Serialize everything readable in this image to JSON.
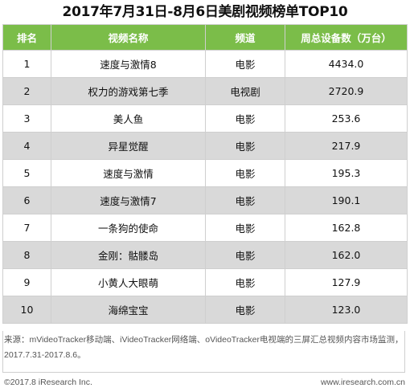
{
  "title": "2017年7月31日-8月6日美剧视频榜单TOP10",
  "headers": {
    "rank": "排名",
    "name": "视频名称",
    "channel": "频道",
    "value": "周总设备数（万台）"
  },
  "rows": [
    {
      "rank": "1",
      "name": "速度与激情8",
      "channel": "电影",
      "value": "4434.0"
    },
    {
      "rank": "2",
      "name": "权力的游戏第七季",
      "channel": "电视剧",
      "value": "2720.9"
    },
    {
      "rank": "3",
      "name": "美人鱼",
      "channel": "电影",
      "value": "253.6"
    },
    {
      "rank": "4",
      "name": "异星觉醒",
      "channel": "电影",
      "value": "217.9"
    },
    {
      "rank": "5",
      "name": "速度与激情",
      "channel": "电影",
      "value": "195.3"
    },
    {
      "rank": "6",
      "name": "速度与激情7",
      "channel": "电影",
      "value": "190.1"
    },
    {
      "rank": "7",
      "name": "一条狗的使命",
      "channel": "电影",
      "value": "162.8"
    },
    {
      "rank": "8",
      "name": "金刚：骷髅岛",
      "channel": "电影",
      "value": "162.0"
    },
    {
      "rank": "9",
      "name": "小黄人大眼萌",
      "channel": "电影",
      "value": "127.9"
    },
    {
      "rank": "10",
      "name": "海绵宝宝",
      "channel": "电影",
      "value": "123.0"
    }
  ],
  "source": "来源：mVideoTracker移动端、iVideoTracker网络端、oVideoTracker电视端的三屏汇总视频内容市场监测，2017.7.31-2017.8.6。",
  "copyright": "©2017.8 iResearch Inc.",
  "website": "www.iresearch.com.cn",
  "colors": {
    "header_bg": "#7bbd49",
    "alt_row_bg": "#d9d9d9"
  },
  "chart_data": {
    "type": "table",
    "title": "2017年7月31日-8月6日美剧视频榜单TOP10",
    "columns": [
      "排名",
      "视频名称",
      "频道",
      "周总设备数（万台）"
    ],
    "categories": [
      "速度与激情8",
      "权力的游戏第七季",
      "美人鱼",
      "异星觉醒",
      "速度与激情",
      "速度与激情7",
      "一条狗的使命",
      "金刚：骷髅岛",
      "小黄人大眼萌",
      "海绵宝宝"
    ],
    "channels": [
      "电影",
      "电视剧",
      "电影",
      "电影",
      "电影",
      "电影",
      "电影",
      "电影",
      "电影",
      "电影"
    ],
    "values": [
      4434.0,
      2720.9,
      253.6,
      217.9,
      195.3,
      190.1,
      162.8,
      162.0,
      127.9,
      123.0
    ],
    "unit": "万台"
  }
}
